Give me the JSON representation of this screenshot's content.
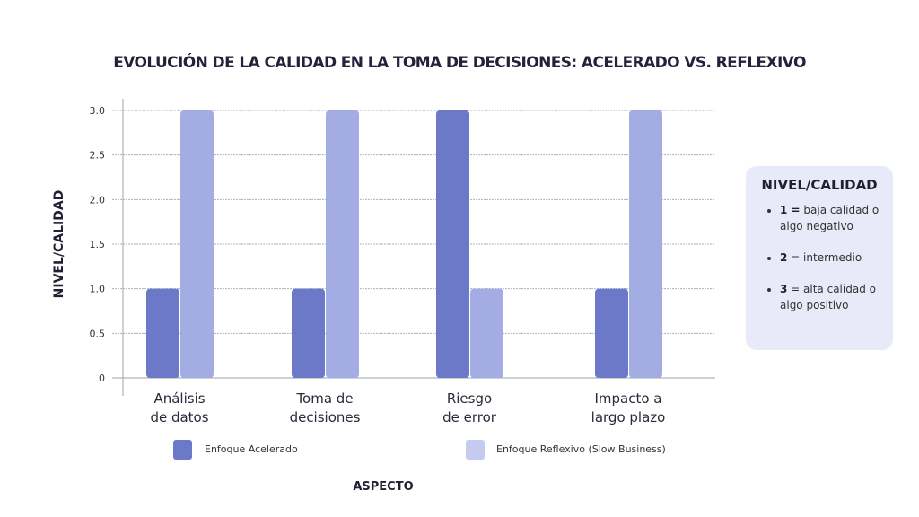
{
  "chart_data": {
    "type": "bar",
    "title": "EVOLUCIÓN DE LA CALIDAD EN LA TOMA DE DECISIONES: ACELERADO VS. REFLEXIVO",
    "xlabel": "ASPECTO",
    "ylabel": "NIVEL/CALIDAD",
    "ylim": [
      0,
      3
    ],
    "yticks": [
      "0",
      "0.5",
      "1.0",
      "1.5",
      "2.0",
      "2.5",
      "3.0"
    ],
    "categories": [
      [
        "Análisis",
        "de datos"
      ],
      [
        "Toma de",
        "decisiones"
      ],
      [
        "Riesgo",
        "de error"
      ],
      [
        "Impacto a",
        "largo plazo"
      ]
    ],
    "series": [
      {
        "name": "Enfoque Acelerado",
        "color": "#6b79c8",
        "values": [
          1,
          1,
          3,
          1
        ]
      },
      {
        "name": "Enfoque Reflexivo (Slow Business)",
        "color": "#a3ade3",
        "values": [
          3,
          3,
          1,
          3
        ]
      }
    ],
    "grid": true,
    "legend": "bottom"
  },
  "info_box": {
    "title": "NIVEL/CALIDAD",
    "items": [
      {
        "key": "1 =",
        "text": " baja calidad o algo negativo"
      },
      {
        "key": "2",
        "text": " = intermedio"
      },
      {
        "key": "3",
        "text": " = alta calidad o algo positivo"
      }
    ]
  }
}
